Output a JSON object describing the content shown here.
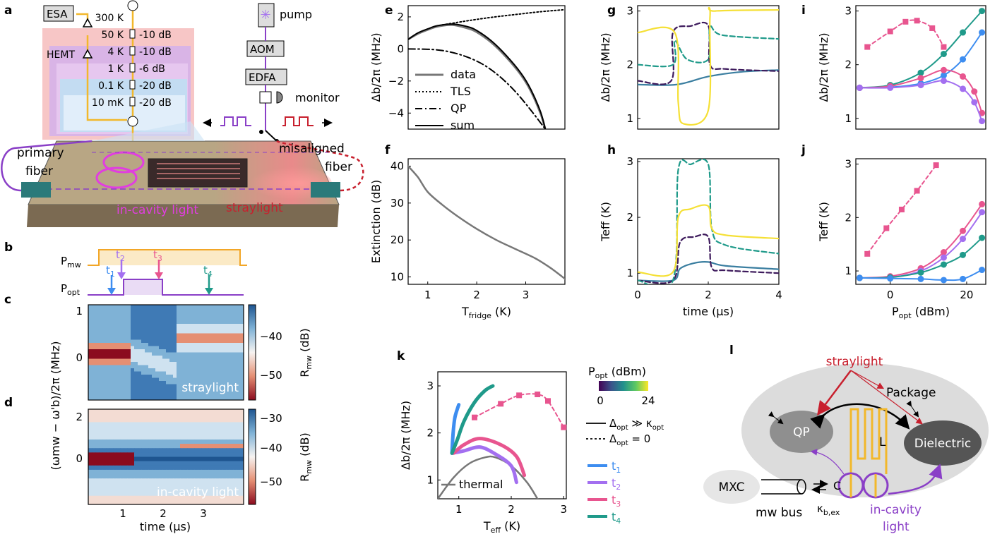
{
  "panel_labels": {
    "a": "a",
    "b": "b",
    "c": "c",
    "d": "d",
    "e": "e",
    "f": "f",
    "g": "g",
    "h": "h",
    "i": "i",
    "j": "j",
    "k": "k",
    "l": "l"
  },
  "setup": {
    "esa": "ESA",
    "hemt": "HEMT",
    "pump": "pump",
    "aom": "AOM",
    "edfa": "EDFA",
    "monitor": "monitor",
    "stages": [
      {
        "temp": "300 K",
        "att": ""
      },
      {
        "temp": "50 K",
        "att": "-10 dB"
      },
      {
        "temp": "4 K",
        "att": "-10 dB"
      },
      {
        "temp": "1 K",
        "att": "-6 dB"
      },
      {
        "temp": "0.1 K",
        "att": "-20 dB"
      },
      {
        "temp": "10 mK",
        "att": "-20 dB"
      }
    ],
    "primary_fiber": [
      "primary",
      "fiber"
    ],
    "misaligned_fiber": [
      "misaligned",
      "fiber"
    ],
    "in_cavity_light": "in-cavity light",
    "straylight": "straylight"
  },
  "pulse": {
    "p_mw": "P",
    "p_mw_sub": "mw",
    "p_opt": "P",
    "p_opt_sub": "opt",
    "t1": "t",
    "t2": "t",
    "t3": "t",
    "t4": "t",
    "s1": "1",
    "s2": "2",
    "s3": "3",
    "s4": "4"
  },
  "colors": {
    "t1": "#3d8df0",
    "t2": "#a36ff0",
    "t3": "#e8558f",
    "t4": "#1f9a8a",
    "straylight": "#c8202e",
    "incavity": "#8a3fc7",
    "yellow": "#f2c421",
    "setup_bg": "#f7c6c6"
  },
  "heatmaps": {
    "ylabel": "(ω",
    "ylabel_full": "(ωmw − ω'b)/2π (MHz)",
    "c_label": "straylight",
    "d_label": "in-cavity light",
    "c_yticks": [
      "1",
      "0"
    ],
    "d_yticks": [
      "2",
      "0"
    ],
    "xticks": [
      "1",
      "2",
      "3"
    ],
    "xlabel": "time (µs)",
    "c_cbar": [
      "−40",
      "−50"
    ],
    "d_cbar": [
      "−30",
      "−40",
      "−50"
    ],
    "cbar_label": "R",
    "cbar_sub": "mw",
    "cbar_unit": "(dB)"
  },
  "l_diagram": {
    "straylight": "straylight",
    "package": "Package",
    "qp": "QP",
    "dielectric": "Dielectric",
    "mxc": "MXC",
    "mw_bus": "mw bus",
    "kappa": "κ",
    "kappa_sub": "b,ex",
    "L": "L",
    "C": "C",
    "in_cavity": [
      "in-cavity",
      "light"
    ]
  },
  "chart_data": [
    {
      "panel": "e",
      "type": "line",
      "ylabel": "Δb/2π (MHz)",
      "xlim": [
        0.6,
        3.8
      ],
      "ylim": [
        -5,
        2.7
      ],
      "yticks": [
        "2",
        "0",
        "−2",
        "−4"
      ],
      "legend": [
        "data",
        "TLS",
        "QP",
        "sum"
      ],
      "series": [
        {
          "name": "data",
          "x": [
            0.6,
            0.8,
            1.0,
            1.2,
            1.5,
            1.8,
            2.0,
            2.3,
            2.6,
            2.9,
            3.1,
            3.3,
            3.4
          ],
          "values": [
            0.6,
            0.95,
            1.2,
            1.4,
            1.5,
            1.3,
            1.05,
            0.4,
            -0.5,
            -1.6,
            -2.6,
            -4.0,
            -5.0
          ]
        },
        {
          "name": "TLS",
          "x": [
            1.3,
            1.8,
            2.3,
            2.8,
            3.3,
            3.8
          ],
          "values": [
            1.5,
            1.75,
            1.97,
            2.15,
            2.32,
            2.45
          ]
        },
        {
          "name": "QP",
          "x": [
            0.6,
            1.0,
            1.3,
            1.6,
            1.9,
            2.2,
            2.5,
            2.8,
            3.1,
            3.4
          ],
          "values": [
            0,
            -0.02,
            -0.1,
            -0.3,
            -0.62,
            -1.1,
            -1.8,
            -2.7,
            -3.8,
            -5.0
          ]
        },
        {
          "name": "sum",
          "x": [
            0.6,
            0.8,
            1.0,
            1.2,
            1.5,
            1.8,
            2.0,
            2.3,
            2.6,
            2.9,
            3.1,
            3.3,
            3.4
          ],
          "values": [
            0.6,
            1.0,
            1.25,
            1.45,
            1.55,
            1.4,
            1.15,
            0.5,
            -0.4,
            -1.5,
            -2.5,
            -3.9,
            -5.0
          ]
        }
      ]
    },
    {
      "panel": "f",
      "type": "line",
      "ylabel": "Extinction (dB)",
      "xlabel": "T",
      "xlabel_sub": "fridge",
      "xlabel_unit": "(K)",
      "xlim": [
        0.6,
        3.8
      ],
      "ylim": [
        8,
        42
      ],
      "xticks": [
        "1",
        "2",
        "3"
      ],
      "yticks": [
        "40",
        "30",
        "20",
        "10"
      ],
      "series": [
        {
          "name": "",
          "x": [
            0.6,
            0.8,
            1.0,
            1.3,
            1.6,
            2.0,
            2.4,
            2.8,
            3.2,
            3.5,
            3.8
          ],
          "values": [
            40,
            37,
            33,
            29.5,
            26.5,
            23,
            20,
            17.5,
            15,
            12.5,
            9.5
          ]
        }
      ]
    },
    {
      "panel": "g",
      "type": "line",
      "ylabel": "Δb/2π (MHz)",
      "xlim": [
        0,
        4
      ],
      "ylim": [
        0.8,
        3.1
      ],
      "yticks": [
        "3",
        "2",
        "1"
      ],
      "series": [
        {
          "name": "t1",
          "x": [
            0,
            1.1,
            2,
            3,
            4
          ],
          "values": [
            1.63,
            1.63,
            1.78,
            1.87,
            1.9
          ]
        },
        {
          "name": "t2",
          "x": [
            0,
            0.95,
            1.0,
            1.5,
            2.0,
            2.05,
            2.5,
            4
          ],
          "values": [
            1.7,
            1.7,
            2.6,
            2.72,
            2.73,
            2.0,
            1.92,
            1.88
          ]
        },
        {
          "name": "t4",
          "x": [
            0,
            1.0,
            1.05,
            1.4,
            2.0,
            2.05,
            2.4,
            4
          ],
          "values": [
            2.0,
            2.0,
            2.45,
            2.1,
            2.1,
            2.7,
            2.55,
            2.48
          ]
        },
        {
          "name": "t3",
          "x": [
            0,
            1.05,
            1.15,
            1.3,
            2.0,
            2.05,
            2.2,
            4
          ],
          "values": [
            2.6,
            2.6,
            1.3,
            0.9,
            1.15,
            2.9,
            3.0,
            3.02
          ]
        }
      ]
    },
    {
      "panel": "h",
      "type": "line",
      "ylabel": "Teff (K)",
      "xlabel": "time (µs)",
      "xlim": [
        0,
        4
      ],
      "ylim": [
        0.8,
        3.05
      ],
      "xticks": [
        "0",
        "2",
        "4"
      ],
      "yticks": [
        "3",
        "2",
        "1"
      ],
      "series": [
        {
          "name": "t1",
          "x": [
            0,
            1.0,
            1.2,
            1.6,
            2.0,
            2.5,
            4
          ],
          "values": [
            0.87,
            0.87,
            1.08,
            1.18,
            1.2,
            1.13,
            1.07
          ]
        },
        {
          "name": "t2",
          "x": [
            0,
            1.0,
            1.2,
            1.6,
            2.0,
            2.1,
            2.5,
            4
          ],
          "values": [
            0.87,
            0.87,
            1.55,
            1.65,
            1.65,
            1.1,
            1.05,
            1.0
          ]
        },
        {
          "name": "t4",
          "x": [
            0,
            1.0,
            1.15,
            1.5,
            2.0,
            2.1,
            2.5,
            4
          ],
          "values": [
            0.87,
            0.87,
            2.85,
            2.95,
            2.95,
            1.8,
            1.5,
            1.35
          ]
        },
        {
          "name": "t3",
          "x": [
            0,
            1.0,
            1.15,
            1.5,
            2.0,
            2.1,
            2.5,
            4
          ],
          "values": [
            1.02,
            1.02,
            2.0,
            2.15,
            2.2,
            1.8,
            1.68,
            1.62
          ]
        }
      ]
    },
    {
      "panel": "i",
      "type": "line",
      "ylabel": "Δb/2π (MHz)",
      "xlim": [
        -9,
        25
      ],
      "ylim": [
        0.8,
        3.1
      ],
      "yticks": [
        "3",
        "2",
        "1"
      ],
      "series": [
        {
          "name": "dashed",
          "x": [
            -6,
            0,
            4,
            7,
            11,
            14
          ],
          "values": [
            2.33,
            2.62,
            2.8,
            2.82,
            2.68,
            2.33
          ]
        },
        {
          "name": "t4",
          "x": [
            -8,
            0,
            8,
            14,
            19,
            24
          ],
          "values": [
            1.57,
            1.62,
            1.85,
            2.2,
            2.6,
            3.0
          ]
        },
        {
          "name": "t1",
          "x": [
            -8,
            0,
            8,
            14,
            19,
            24
          ],
          "values": [
            1.57,
            1.58,
            1.65,
            1.8,
            2.1,
            2.6
          ]
        },
        {
          "name": "t3",
          "x": [
            -8,
            0,
            8,
            14,
            19,
            22,
            24
          ],
          "values": [
            1.57,
            1.6,
            1.75,
            1.9,
            1.78,
            1.5,
            1.1
          ]
        },
        {
          "name": "t2",
          "x": [
            -8,
            0,
            8,
            14,
            19,
            22,
            24
          ],
          "values": [
            1.57,
            1.57,
            1.62,
            1.7,
            1.55,
            1.3,
            0.95
          ]
        }
      ]
    },
    {
      "panel": "j",
      "type": "line",
      "ylabel": "Teff (K)",
      "xlabel": "P",
      "xlabel_sub": "opt",
      "xlabel_unit": "(dBm)",
      "xlim": [
        -9,
        25
      ],
      "ylim": [
        0.75,
        3.1
      ],
      "xticks": [
        "0",
        "20"
      ],
      "yticks": [
        "3",
        "2",
        "1"
      ],
      "series": [
        {
          "name": "dashed",
          "x": [
            -6,
            -1,
            3,
            7,
            12
          ],
          "values": [
            1.32,
            1.8,
            2.15,
            2.5,
            2.98
          ]
        },
        {
          "name": "t3",
          "x": [
            -8,
            0,
            8,
            14,
            19,
            24
          ],
          "values": [
            0.87,
            0.9,
            1.05,
            1.35,
            1.75,
            2.25
          ]
        },
        {
          "name": "t2",
          "x": [
            -8,
            0,
            8,
            14,
            19,
            24
          ],
          "values": [
            0.87,
            0.88,
            1.0,
            1.25,
            1.6,
            2.1
          ]
        },
        {
          "name": "t4",
          "x": [
            -8,
            0,
            8,
            14,
            19,
            24
          ],
          "values": [
            0.87,
            0.88,
            0.97,
            1.12,
            1.3,
            1.62
          ]
        },
        {
          "name": "t1",
          "x": [
            -8,
            0,
            8,
            14,
            19,
            24
          ],
          "values": [
            0.87,
            0.86,
            0.85,
            0.83,
            0.85,
            1.02
          ]
        }
      ]
    },
    {
      "panel": "k",
      "type": "line",
      "ylabel": "Δb/2π (MHz)",
      "xlabel": "T",
      "xlabel_sub": "eff",
      "xlabel_unit": "(K)",
      "xlim": [
        0.6,
        3.05
      ],
      "ylim": [
        0.6,
        3.3
      ],
      "xticks": [
        "1",
        "2",
        "3"
      ],
      "yticks": [
        "3",
        "2",
        "1"
      ],
      "colorbar": {
        "label": "P",
        "label_sub": "opt",
        "label_unit": "(dBm)",
        "min": "0",
        "max": "24"
      },
      "legend_lines": [
        {
          "text": "Δ",
          "sub": "opt",
          "rest": " ≫ κ",
          "rest_sub": "opt"
        },
        {
          "text": "Δ",
          "sub": "opt",
          "rest": " = 0",
          "rest_sub": ""
        }
      ],
      "legend": [
        "t1",
        "t2",
        "t3",
        "t4"
      ],
      "thermal_label": "thermal",
      "series": [
        {
          "name": "thermal",
          "x": [
            0.6,
            0.9,
            1.2,
            1.5,
            1.7,
            2.0,
            2.3,
            2.5
          ],
          "values": [
            0.6,
            1.05,
            1.35,
            1.48,
            1.48,
            1.3,
            0.95,
            0.6
          ]
        },
        {
          "name": "t1",
          "x": [
            0.87,
            0.88,
            0.9,
            0.93,
            1.0
          ],
          "values": [
            1.57,
            1.8,
            2.1,
            2.35,
            2.6
          ]
        },
        {
          "name": "t2",
          "x": [
            0.87,
            1.1,
            1.4,
            1.7,
            2.0,
            2.1
          ],
          "values": [
            1.57,
            1.62,
            1.7,
            1.55,
            1.3,
            0.95
          ]
        },
        {
          "name": "t3",
          "x": [
            0.9,
            1.1,
            1.4,
            1.8,
            2.1,
            2.25
          ],
          "values": [
            1.57,
            1.75,
            1.88,
            1.75,
            1.5,
            1.1
          ]
        },
        {
          "name": "t4",
          "x": [
            0.87,
            0.97,
            1.1,
            1.3,
            1.5,
            1.65
          ],
          "values": [
            1.57,
            1.85,
            2.25,
            2.65,
            2.9,
            3.0
          ]
        },
        {
          "name": "dashed",
          "x": [
            1.3,
            1.8,
            2.15,
            2.5,
            2.7,
            3.0
          ],
          "values": [
            2.33,
            2.62,
            2.8,
            2.82,
            2.68,
            2.12
          ]
        }
      ]
    }
  ]
}
